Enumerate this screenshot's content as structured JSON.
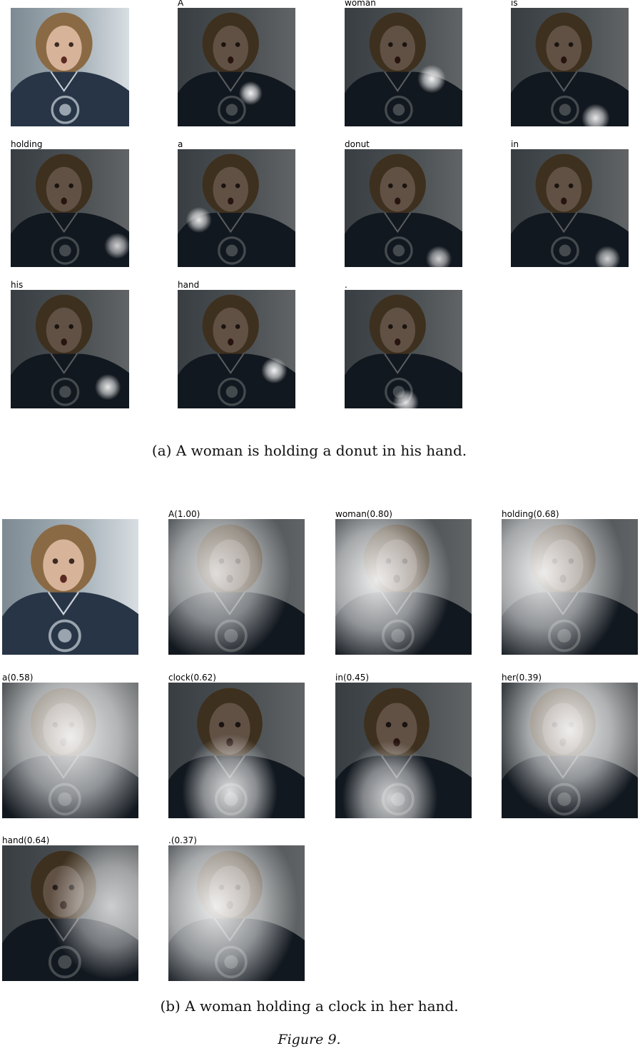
{
  "panel_a": {
    "caption": "(a) A woman is holding a donut in his hand.",
    "words": [
      "A",
      "woman",
      "is",
      "holding",
      "a",
      "donut",
      "in",
      "his",
      "hand",
      "."
    ]
  },
  "panel_b": {
    "caption": "(b) A woman holding a clock in her hand.",
    "words": [
      "A(1.00)",
      "woman(0.80)",
      "holding(0.68)",
      "a(0.58)",
      "clock(0.62)",
      "in(0.45)",
      "her(0.39)",
      "hand(0.64)",
      ".(0.37)"
    ]
  },
  "figure_label": "Figure 9."
}
